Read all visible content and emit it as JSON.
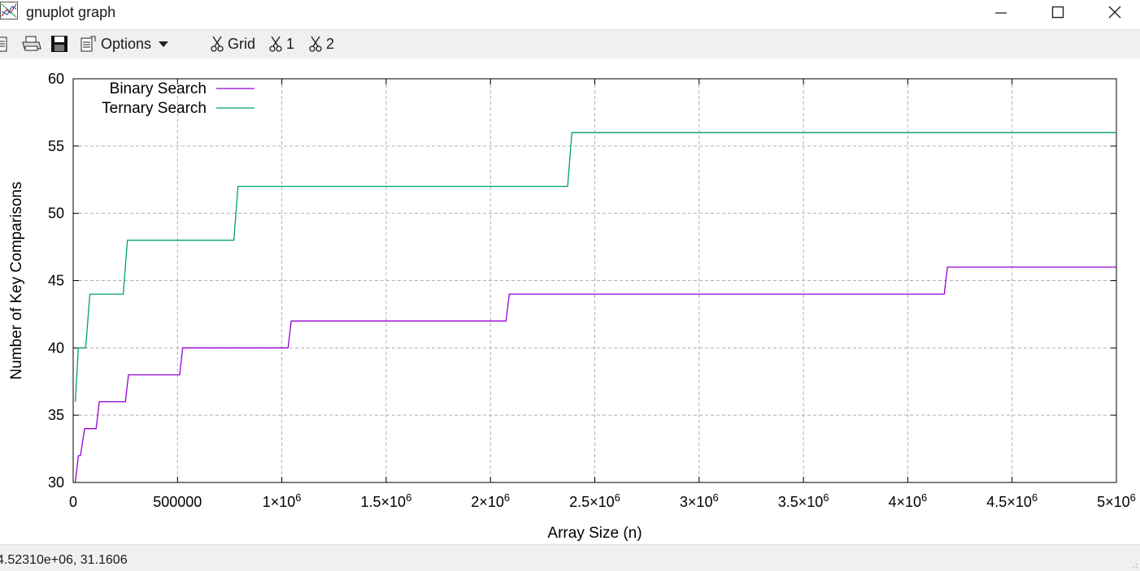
{
  "window": {
    "title": "gnuplot graph"
  },
  "toolbar": {
    "options_label": "Options",
    "grid_label": "Grid",
    "plot1_label": "1",
    "plot2_label": "2"
  },
  "status": {
    "coords": "4.52310e+06,  31.1606"
  },
  "chart_data": {
    "type": "line",
    "title": "",
    "xlabel": "Array Size (n)",
    "ylabel": "Number of Key Comparisons",
    "xlim": [
      0,
      5000000
    ],
    "ylim": [
      30,
      60
    ],
    "grid": true,
    "legend_position": "top-left",
    "x_ticks": [
      {
        "value": 0,
        "mant": "0",
        "exp": ""
      },
      {
        "value": 500000,
        "mant": "500000",
        "exp": ""
      },
      {
        "value": 1000000,
        "mant": "1×10",
        "exp": "6"
      },
      {
        "value": 1500000,
        "mant": "1.5×10",
        "exp": "6"
      },
      {
        "value": 2000000,
        "mant": "2×10",
        "exp": "6"
      },
      {
        "value": 2500000,
        "mant": "2.5×10",
        "exp": "6"
      },
      {
        "value": 3000000,
        "mant": "3×10",
        "exp": "6"
      },
      {
        "value": 3500000,
        "mant": "3.5×10",
        "exp": "6"
      },
      {
        "value": 4000000,
        "mant": "4×10",
        "exp": "6"
      },
      {
        "value": 4500000,
        "mant": "4.5×10",
        "exp": "6"
      },
      {
        "value": 5000000,
        "mant": "5×10",
        "exp": "6"
      }
    ],
    "y_ticks": [
      30,
      35,
      40,
      45,
      50,
      55,
      60
    ],
    "series": [
      {
        "name": "Binary Search",
        "color": "#9400d3",
        "x": [
          10000,
          25000,
          35000,
          55000,
          65000,
          110000,
          125000,
          250000,
          265000,
          510000,
          525000,
          1030000,
          1045000,
          2075000,
          2090000,
          4175000,
          4190000,
          5000000
        ],
        "y": [
          30,
          32,
          32,
          34,
          34,
          34,
          36,
          36,
          38,
          38,
          40,
          40,
          42,
          42,
          44,
          44,
          46,
          46
        ]
      },
      {
        "name": "Ternary Search",
        "color": "#009e73",
        "x": [
          10000,
          25000,
          60000,
          80000,
          240000,
          260000,
          770000,
          790000,
          2370000,
          2390000,
          5000000
        ],
        "y": [
          36,
          40,
          40,
          44,
          44,
          48,
          48,
          52,
          52,
          56,
          56
        ]
      }
    ]
  }
}
